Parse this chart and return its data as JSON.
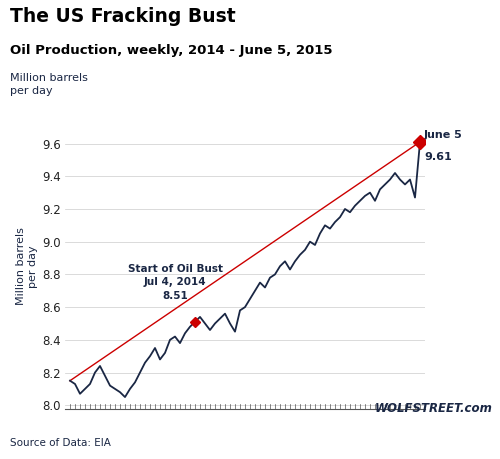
{
  "title": "The US Fracking Bust",
  "subtitle": "Oil Production, weekly, 2014 - June 5, 2015",
  "ylabel": "Million barrels\nper day",
  "source": "Source of Data: EIA",
  "watermark": "WOLFSTREET.com",
  "line_color": "#1a2744",
  "trend_color": "#cc0000",
  "marker_color": "#cc0000",
  "ylim": [
    7.98,
    9.72
  ],
  "bust_idx": 25,
  "bust_label": "Start of Oil Bust\nJul 4, 2014\n8.51",
  "end_label_line1": "June 5",
  "end_label_line2": "9.61",
  "values": [
    8.15,
    8.13,
    8.07,
    8.1,
    8.13,
    8.2,
    8.24,
    8.18,
    8.12,
    8.1,
    8.08,
    8.05,
    8.1,
    8.14,
    8.2,
    8.26,
    8.3,
    8.35,
    8.28,
    8.32,
    8.4,
    8.42,
    8.38,
    8.44,
    8.48,
    8.51,
    8.54,
    8.5,
    8.46,
    8.5,
    8.53,
    8.56,
    8.5,
    8.45,
    8.58,
    8.6,
    8.65,
    8.7,
    8.75,
    8.72,
    8.78,
    8.8,
    8.85,
    8.88,
    8.83,
    8.88,
    8.92,
    8.95,
    9.0,
    8.98,
    9.05,
    9.1,
    9.08,
    9.12,
    9.15,
    9.2,
    9.18,
    9.22,
    9.25,
    9.28,
    9.3,
    9.25,
    9.32,
    9.35,
    9.38,
    9.42,
    9.38,
    9.35,
    9.38,
    9.27,
    9.61
  ],
  "yticks": [
    8.0,
    8.2,
    8.4,
    8.6,
    8.8,
    9.0,
    9.2,
    9.4,
    9.6
  ]
}
